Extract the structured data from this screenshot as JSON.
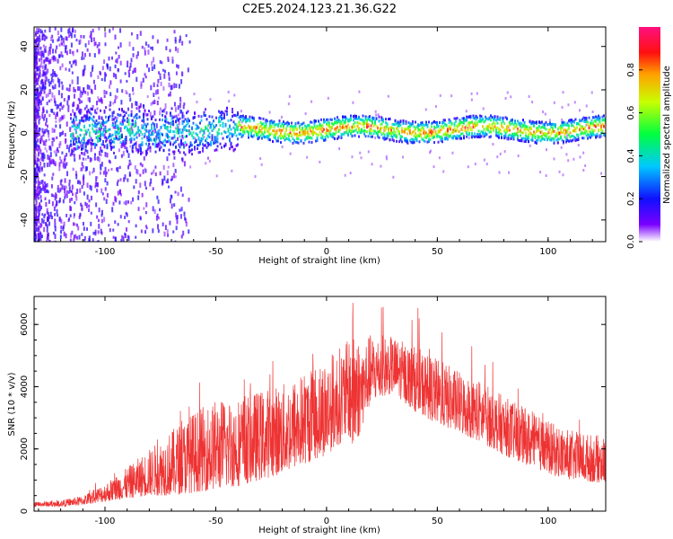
{
  "chart_data": [
    {
      "type": "heatmap",
      "title": "C2E5.2024.123.21.36.G22",
      "xlabel": "Height of straight line (km)",
      "ylabel": "Frequency (Hz)",
      "xlim": [
        -132,
        126
      ],
      "ylim": [
        -50,
        49
      ],
      "xticks": [
        -100,
        -50,
        0,
        50,
        100
      ],
      "yticks": [
        -40,
        -20,
        0,
        20,
        40
      ],
      "colorbar": {
        "label": "Normalized spectral amplitude",
        "range": [
          0.0,
          1.0
        ],
        "ticks": [
          0.0,
          0.2,
          0.4,
          0.6,
          0.8
        ],
        "colormap": "rainbow (purple-blue-cyan-green-yellow-red-magenta)"
      },
      "description_bands": [
        {
          "x_range": [
            -132,
            -95
          ],
          "content": "scattered broadband speckle across full frequency range"
        },
        {
          "x_range": [
            -115,
            -40
          ],
          "content": "ridge near 0 Hz, amplitude ~0.3-0.5, width ~+/-8 Hz"
        },
        {
          "x_range": [
            -40,
            126
          ],
          "content": "narrow ridge near 0-3 Hz, amplitude ~0.6-0.9"
        }
      ]
    },
    {
      "type": "line",
      "xlabel": "Height of straight line (km)",
      "ylabel": "SNR (10 * v/v)",
      "xlim": [
        -132,
        126
      ],
      "ylim": [
        0,
        6900
      ],
      "xticks": [
        -100,
        -50,
        0,
        50,
        100
      ],
      "yticks": [
        0,
        2000,
        4000,
        6000
      ],
      "color": "#ee3333",
      "envelope": {
        "x": [
          -132,
          -120,
          -110,
          -100,
          -90,
          -80,
          -70,
          -60,
          -50,
          -40,
          -30,
          -20,
          -10,
          0,
          10,
          12,
          15,
          20,
          30,
          40,
          50,
          60,
          70,
          80,
          90,
          100,
          110,
          126
        ],
        "low": [
          150,
          150,
          200,
          300,
          400,
          500,
          500,
          600,
          700,
          800,
          1000,
          1200,
          1500,
          1800,
          2400,
          1800,
          2500,
          3500,
          3800,
          3200,
          2800,
          2500,
          2200,
          1800,
          1500,
          1200,
          1000,
          900
        ],
        "high": [
          300,
          350,
          500,
          900,
          1400,
          2000,
          2600,
          3200,
          3600,
          3700,
          3900,
          4100,
          4500,
          5000,
          5500,
          6900,
          5400,
          5700,
          5600,
          5300,
          4900,
          4500,
          4200,
          3700,
          3300,
          2900,
          2600,
          2400
        ]
      }
    }
  ]
}
